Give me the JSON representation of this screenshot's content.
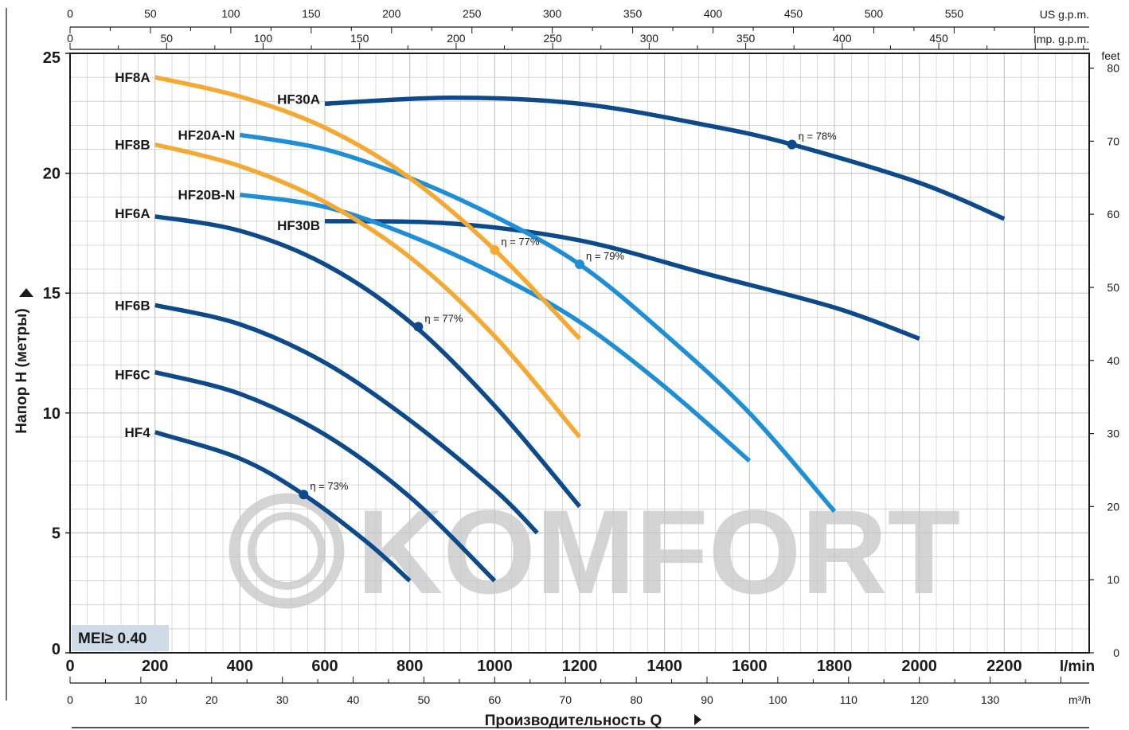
{
  "watermark": "KOMFORT",
  "badge": "MEI≥ 0.40",
  "colors": {
    "dark_blue": "#0d4a8b",
    "light_blue": "#1e8fd6",
    "orange": "#f5a933",
    "grid": "#c8c8c8"
  },
  "chart_data": {
    "type": "line",
    "xlabel": "Производительность Q",
    "ylabel": "Напор H (метры)",
    "xlim": [
      0,
      2400
    ],
    "ylim": [
      0,
      25
    ],
    "x_unit": "l/min",
    "y_unit_right": "feet",
    "grid": true,
    "x_ticks": [
      0,
      200,
      400,
      600,
      800,
      1000,
      1200,
      1400,
      1600,
      1800,
      2000,
      2200
    ],
    "y_ticks": [
      0,
      5,
      10,
      15,
      20,
      25
    ],
    "feet_ticks": [
      0,
      10,
      20,
      30,
      40,
      50,
      60,
      70,
      80
    ],
    "m3h_unit": "m³/h",
    "m3h_ticks": [
      0,
      10,
      20,
      30,
      40,
      50,
      60,
      70,
      80,
      90,
      100,
      110,
      120,
      130
    ],
    "us_gpm_unit": "US g.p.m.",
    "us_gpm_ticks": [
      0,
      50,
      100,
      150,
      200,
      250,
      300,
      350,
      400,
      450,
      500,
      550
    ],
    "imp_gpm_unit": "Imp. g.p.m.",
    "imp_gpm_ticks": [
      0,
      50,
      100,
      150,
      200,
      250,
      300,
      350,
      400,
      450
    ],
    "series": [
      {
        "name": "HF30A",
        "color": "#0d4a8b",
        "x": [
          600,
          900,
          1200,
          1500,
          1700,
          2000,
          2200
        ],
        "y": [
          22.9,
          23.15,
          22.9,
          22.0,
          21.2,
          19.6,
          18.1
        ]
      },
      {
        "name": "HF30B",
        "color": "#0d4a8b",
        "x": [
          600,
          900,
          1200,
          1500,
          1800,
          2000
        ],
        "y": [
          18.0,
          17.9,
          17.2,
          15.8,
          14.4,
          13.1
        ]
      },
      {
        "name": "HF20A-N",
        "color": "#1e8fd6",
        "x": [
          400,
          600,
          800,
          1000,
          1200,
          1400,
          1600,
          1800
        ],
        "y": [
          21.6,
          21.0,
          19.8,
          18.2,
          16.2,
          13.3,
          10.0,
          5.9
        ]
      },
      {
        "name": "HF20B-N",
        "color": "#1e8fd6",
        "x": [
          400,
          600,
          800,
          1000,
          1200,
          1400,
          1600
        ],
        "y": [
          19.1,
          18.6,
          17.4,
          15.8,
          13.8,
          11.1,
          8.0
        ]
      },
      {
        "name": "HF8A",
        "color": "#f5a933",
        "x": [
          200,
          400,
          600,
          800,
          1000,
          1200
        ],
        "y": [
          24.0,
          23.2,
          21.9,
          19.8,
          16.8,
          13.1
        ]
      },
      {
        "name": "HF8B",
        "color": "#f5a933",
        "x": [
          200,
          400,
          600,
          800,
          1000,
          1200
        ],
        "y": [
          21.2,
          20.3,
          18.8,
          16.5,
          13.2,
          9.0
        ]
      },
      {
        "name": "HF6A",
        "color": "#0d4a8b",
        "x": [
          200,
          400,
          600,
          800,
          1000,
          1200
        ],
        "y": [
          18.2,
          17.6,
          16.2,
          13.8,
          10.3,
          6.1
        ]
      },
      {
        "name": "HF6B",
        "color": "#0d4a8b",
        "x": [
          200,
          400,
          600,
          800,
          1000,
          1100
        ],
        "y": [
          14.5,
          13.7,
          12.1,
          9.7,
          6.8,
          5.0
        ]
      },
      {
        "name": "HF6C",
        "color": "#0d4a8b",
        "x": [
          200,
          400,
          600,
          800,
          1000
        ],
        "y": [
          11.7,
          10.8,
          9.1,
          6.5,
          3.0
        ]
      },
      {
        "name": "HF4",
        "color": "#0d4a8b",
        "x": [
          200,
          400,
          550,
          700,
          800
        ],
        "y": [
          9.2,
          8.1,
          6.6,
          4.6,
          3.0
        ]
      }
    ],
    "annotations": [
      {
        "text": "η = 78%",
        "series": "HF30A",
        "x": 1700,
        "y": 21.2
      },
      {
        "text": "η = 77%",
        "series": "HF8A",
        "x": 1000,
        "y": 16.8
      },
      {
        "text": "η = 79%",
        "series": "HF20A-N",
        "x": 1200,
        "y": 16.2
      },
      {
        "text": "η = 77%",
        "series": "HF6A",
        "x": 820,
        "y": 13.6
      },
      {
        "text": "η = 73%",
        "series": "HF4",
        "x": 550,
        "y": 6.6
      }
    ]
  }
}
